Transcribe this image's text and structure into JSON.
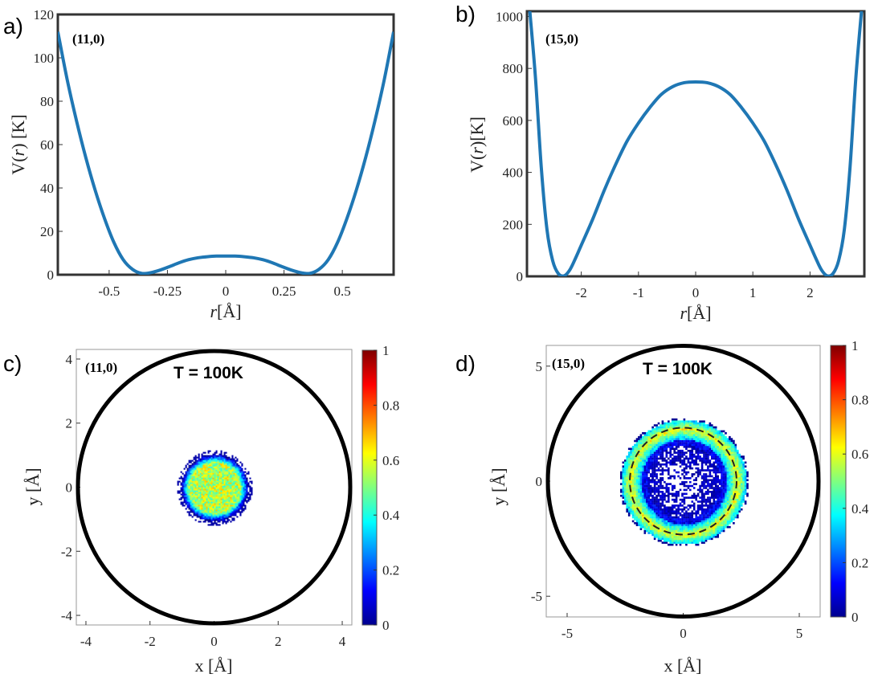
{
  "chart_data": [
    {
      "panel": "a)",
      "type": "line",
      "tag": "(11,0)",
      "xlabel_italic": "r",
      "xlabel_rest": "[Å]",
      "ylabel_pre": "V(",
      "ylabel_italic": "r",
      "ylabel_post": ") [K]",
      "xlim": [
        -0.72,
        0.72
      ],
      "ylim": [
        0,
        120
      ],
      "xticks": [
        "-0.5",
        "-0.25",
        "0",
        "0.25",
        "0.5"
      ],
      "xtick_values": [
        -0.5,
        -0.25,
        0,
        0.25,
        0.5
      ],
      "yticks": [
        "0",
        "20",
        "40",
        "60",
        "80",
        "100",
        "120"
      ],
      "ytick_values": [
        0,
        20,
        40,
        60,
        80,
        100,
        120
      ],
      "color": "#1f77b4",
      "series": [
        {
          "x": [
            -0.72,
            -0.68,
            -0.64,
            -0.6,
            -0.56,
            -0.52,
            -0.48,
            -0.44,
            -0.4,
            -0.36,
            -0.32,
            -0.28,
            -0.24,
            -0.2,
            -0.16,
            -0.12,
            -0.08,
            -0.04,
            0,
            0.04,
            0.08,
            0.12,
            0.16,
            0.2,
            0.24,
            0.28,
            0.32,
            0.36,
            0.4,
            0.44,
            0.48,
            0.52,
            0.56,
            0.6,
            0.64,
            0.68,
            0.72
          ],
          "y": [
            112,
            90,
            71,
            54,
            39,
            26,
            15,
            7,
            2.5,
            0.6,
            1.0,
            2.2,
            3.8,
            5.5,
            6.9,
            7.8,
            8.3,
            8.6,
            8.6,
            8.6,
            8.3,
            7.8,
            6.9,
            5.5,
            3.8,
            2.2,
            1.0,
            0.6,
            2.5,
            7,
            15,
            26,
            39,
            54,
            71,
            90,
            112
          ]
        }
      ]
    },
    {
      "panel": "b)",
      "type": "line",
      "tag": "(15,0)",
      "xlabel_italic": "r",
      "xlabel_rest": "[Å]",
      "ylabel_pre": "V(",
      "ylabel_italic": "r",
      "ylabel_post": ")[K]",
      "xlim": [
        -2.95,
        2.95
      ],
      "ylim": [
        0,
        1020
      ],
      "xticks": [
        "-2",
        "-1",
        "0",
        "1",
        "2"
      ],
      "xtick_values": [
        -2,
        -1,
        0,
        1,
        2
      ],
      "yticks": [
        "0",
        "200",
        "400",
        "600",
        "800",
        "1000"
      ],
      "ytick_values": [
        0,
        200,
        400,
        600,
        800,
        1000
      ],
      "color": "#1f77b4",
      "series": [
        {
          "x": [
            -2.9,
            -2.8,
            -2.7,
            -2.6,
            -2.5,
            -2.4,
            -2.3,
            -2.2,
            -2.1,
            -2.0,
            -1.8,
            -1.6,
            -1.4,
            -1.2,
            -1.0,
            -0.8,
            -0.6,
            -0.4,
            -0.2,
            0,
            0.2,
            0.4,
            0.6,
            0.8,
            1.0,
            1.2,
            1.4,
            1.6,
            1.8,
            2.0,
            2.1,
            2.2,
            2.3,
            2.4,
            2.5,
            2.6,
            2.7,
            2.8,
            2.9
          ],
          "y": [
            1020,
            760,
            420,
            180,
            60,
            10,
            2,
            25,
            70,
            120,
            220,
            330,
            430,
            520,
            590,
            650,
            700,
            730,
            745,
            748,
            745,
            730,
            700,
            650,
            590,
            520,
            430,
            330,
            220,
            120,
            70,
            25,
            2,
            10,
            60,
            180,
            420,
            760,
            1020
          ]
        }
      ]
    },
    {
      "panel": "c)",
      "type": "heatmap",
      "tag": "(11,0)",
      "annotation": "T = 100K",
      "xlabel": "x [Å]",
      "ylabel": "y [Å]",
      "xlim": [
        -4.3,
        4.3
      ],
      "ylim": [
        -4.3,
        4.3
      ],
      "xticks": [
        "-4",
        "-2",
        "0",
        "2",
        "4"
      ],
      "xtick_values": [
        -4,
        -2,
        0,
        2,
        4
      ],
      "yticks": [
        "-4",
        "-2",
        "0",
        "2",
        "4"
      ],
      "ytick_values": [
        -4,
        -2,
        0,
        2,
        4
      ],
      "tube_radius": 4.3,
      "density": {
        "shape": "filled disk",
        "radius": 1.05,
        "peak": 0.55
      },
      "colorbar": {
        "ticks": [
          "0",
          "0.2",
          "0.4",
          "0.6",
          "0.8",
          "1"
        ],
        "tick_values": [
          0,
          0.2,
          0.4,
          0.6,
          0.8,
          1
        ]
      }
    },
    {
      "panel": "d)",
      "type": "heatmap",
      "tag": "(15,0)",
      "annotation": "T = 100K",
      "xlabel": "x [Å]",
      "ylabel": "y [Å]",
      "xlim": [
        -5.9,
        5.9
      ],
      "ylim": [
        -5.9,
        5.9
      ],
      "xticks": [
        "-5",
        "0",
        "5"
      ],
      "xtick_values": [
        -5,
        0,
        5
      ],
      "yticks": [
        "-5",
        "0",
        "5"
      ],
      "ytick_values": [
        -5,
        0,
        5
      ],
      "tube_radius": 5.9,
      "density": {
        "shape": "annulus",
        "r_inner": 1.6,
        "r_outer": 2.7,
        "r_peak": 2.3,
        "dashed_ring_radius": 2.3
      },
      "colorbar": {
        "ticks": [
          "0",
          "0.2",
          "0.4",
          "0.6",
          "0.8",
          "1"
        ],
        "tick_values": [
          0,
          0.2,
          0.4,
          0.6,
          0.8,
          1
        ]
      }
    }
  ]
}
